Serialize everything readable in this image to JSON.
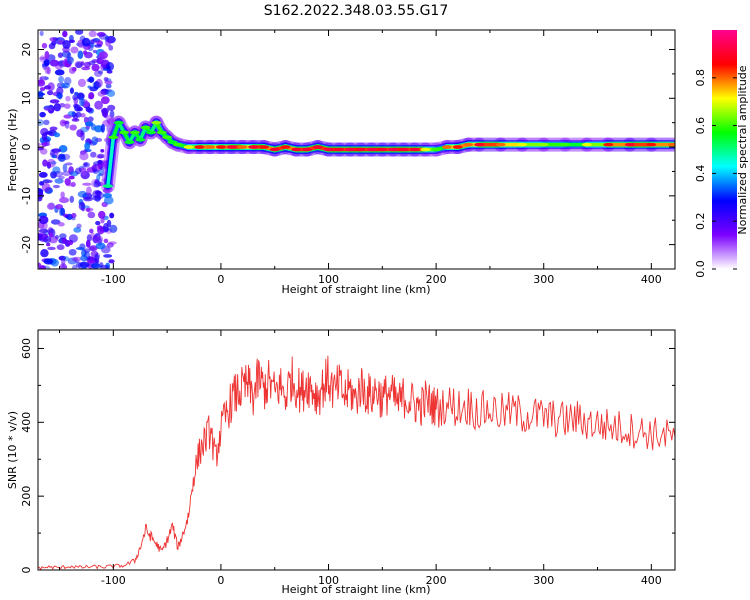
{
  "title": "S162.2022.348.03.55.G17",
  "chart_data": [
    {
      "type": "heatmap",
      "xlabel": "Height of straight line (km)",
      "ylabel": "Frequency (Hz)",
      "xlim": [
        -170,
        422
      ],
      "ylim": [
        -25,
        24
      ],
      "xticks": [
        -100,
        0,
        100,
        200,
        300,
        400
      ],
      "yticks": [
        -20,
        -10,
        0,
        10,
        20
      ],
      "colorbar": {
        "label": "Normalized spectral amplitude",
        "range": [
          0,
          1
        ],
        "ticks": [
          0.0,
          0.2,
          0.4,
          0.6,
          0.8
        ],
        "colormap": [
          "#ffffff",
          "#7b00ff",
          "#0000ff",
          "#00ffff",
          "#00ff00",
          "#ffff00",
          "#ff0000",
          "#ff0090"
        ]
      },
      "ridge": [
        {
          "x": -105,
          "y": -8,
          "amp": 0.5
        },
        {
          "x": -100,
          "y": 2,
          "amp": 0.6
        },
        {
          "x": -95,
          "y": 5,
          "amp": 0.55
        },
        {
          "x": -90,
          "y": 3,
          "amp": 0.6
        },
        {
          "x": -85,
          "y": 1,
          "amp": 0.55
        },
        {
          "x": -80,
          "y": 3,
          "amp": 0.6
        },
        {
          "x": -75,
          "y": 1.5,
          "amp": 0.55
        },
        {
          "x": -70,
          "y": 4,
          "amp": 0.6
        },
        {
          "x": -65,
          "y": 3,
          "amp": 0.55
        },
        {
          "x": -60,
          "y": 5,
          "amp": 0.65
        },
        {
          "x": -55,
          "y": 3,
          "amp": 0.6
        },
        {
          "x": -50,
          "y": 2,
          "amp": 0.6
        },
        {
          "x": -45,
          "y": 1,
          "amp": 0.55
        },
        {
          "x": -40,
          "y": 0.5,
          "amp": 0.6
        },
        {
          "x": -30,
          "y": 0,
          "amp": 0.7
        },
        {
          "x": -20,
          "y": 0,
          "amp": 0.85
        },
        {
          "x": -10,
          "y": 0,
          "amp": 0.8
        },
        {
          "x": 0,
          "y": 0,
          "amp": 0.85
        },
        {
          "x": 10,
          "y": 0,
          "amp": 0.9
        },
        {
          "x": 20,
          "y": 0,
          "amp": 0.8
        },
        {
          "x": 30,
          "y": 0,
          "amp": 0.9
        },
        {
          "x": 40,
          "y": 0,
          "amp": 0.85
        },
        {
          "x": 50,
          "y": -0.5,
          "amp": 0.9
        },
        {
          "x": 60,
          "y": 0,
          "amp": 0.85
        },
        {
          "x": 70,
          "y": -0.5,
          "amp": 0.9
        },
        {
          "x": 80,
          "y": -0.5,
          "amp": 0.9
        },
        {
          "x": 90,
          "y": 0,
          "amp": 0.9
        },
        {
          "x": 100,
          "y": -0.5,
          "amp": 0.92
        },
        {
          "x": 110,
          "y": -0.5,
          "amp": 0.9
        },
        {
          "x": 120,
          "y": -0.5,
          "amp": 0.92
        },
        {
          "x": 130,
          "y": -0.5,
          "amp": 0.9
        },
        {
          "x": 140,
          "y": -0.5,
          "amp": 0.92
        },
        {
          "x": 150,
          "y": -0.5,
          "amp": 0.9
        },
        {
          "x": 160,
          "y": -0.5,
          "amp": 0.92
        },
        {
          "x": 170,
          "y": -0.5,
          "amp": 0.9
        },
        {
          "x": 180,
          "y": -0.5,
          "amp": 0.9
        },
        {
          "x": 190,
          "y": -0.5,
          "amp": 0.7
        },
        {
          "x": 200,
          "y": -0.5,
          "amp": 0.6
        },
        {
          "x": 210,
          "y": 0,
          "amp": 0.8
        },
        {
          "x": 220,
          "y": 0,
          "amp": 0.85
        },
        {
          "x": 230,
          "y": 0.5,
          "amp": 0.8
        },
        {
          "x": 240,
          "y": 0.5,
          "amp": 0.9
        },
        {
          "x": 260,
          "y": 0.5,
          "amp": 0.8
        },
        {
          "x": 280,
          "y": 0.5,
          "amp": 0.7
        },
        {
          "x": 300,
          "y": 0.5,
          "amp": 0.65
        },
        {
          "x": 320,
          "y": 0.5,
          "amp": 0.6
        },
        {
          "x": 340,
          "y": 0.5,
          "amp": 0.7
        },
        {
          "x": 360,
          "y": 0.5,
          "amp": 0.85
        },
        {
          "x": 380,
          "y": 0.5,
          "amp": 0.9
        },
        {
          "x": 400,
          "y": 0.5,
          "amp": 0.85
        },
        {
          "x": 420,
          "y": 0.5,
          "amp": 0.8
        }
      ]
    },
    {
      "type": "line",
      "xlabel": "Height of straight line (km)",
      "ylabel": "SNR (10 * v/v)",
      "xlim": [
        -170,
        422
      ],
      "ylim": [
        0,
        650
      ],
      "xticks": [
        -100,
        0,
        100,
        200,
        300,
        400
      ],
      "yticks": [
        0,
        200,
        400,
        600
      ],
      "color": "#ee3333",
      "x": [
        -170,
        -160,
        -150,
        -140,
        -130,
        -120,
        -110,
        -100,
        -90,
        -80,
        -75,
        -70,
        -65,
        -60,
        -55,
        -50,
        -45,
        -40,
        -35,
        -30,
        -25,
        -20,
        -15,
        -10,
        -5,
        0,
        5,
        10,
        15,
        20,
        25,
        30,
        35,
        40,
        45,
        50,
        55,
        60,
        65,
        70,
        75,
        80,
        85,
        90,
        95,
        100,
        105,
        110,
        115,
        120,
        125,
        130,
        135,
        140,
        145,
        150,
        155,
        160,
        165,
        170,
        175,
        180,
        185,
        190,
        195,
        200,
        210,
        220,
        230,
        240,
        250,
        260,
        270,
        280,
        290,
        300,
        310,
        320,
        330,
        340,
        350,
        360,
        370,
        380,
        390,
        400,
        410,
        422
      ],
      "y": [
        5,
        8,
        6,
        10,
        7,
        9,
        8,
        10,
        12,
        25,
        60,
        110,
        90,
        70,
        50,
        80,
        120,
        60,
        100,
        150,
        260,
        320,
        350,
        380,
        300,
        380,
        420,
        460,
        480,
        490,
        500,
        470,
        520,
        490,
        510,
        480,
        500,
        470,
        520,
        500,
        480,
        510,
        490,
        470,
        500,
        520,
        480,
        500,
        470,
        490,
        460,
        500,
        480,
        470,
        490,
        460,
        480,
        470,
        450,
        470,
        460,
        450,
        440,
        460,
        450,
        440,
        450,
        440,
        445,
        430,
        435,
        425,
        430,
        420,
        420,
        415,
        410,
        405,
        410,
        400,
        395,
        390,
        385,
        380,
        375,
        370,
        365,
        360
      ]
    }
  ]
}
